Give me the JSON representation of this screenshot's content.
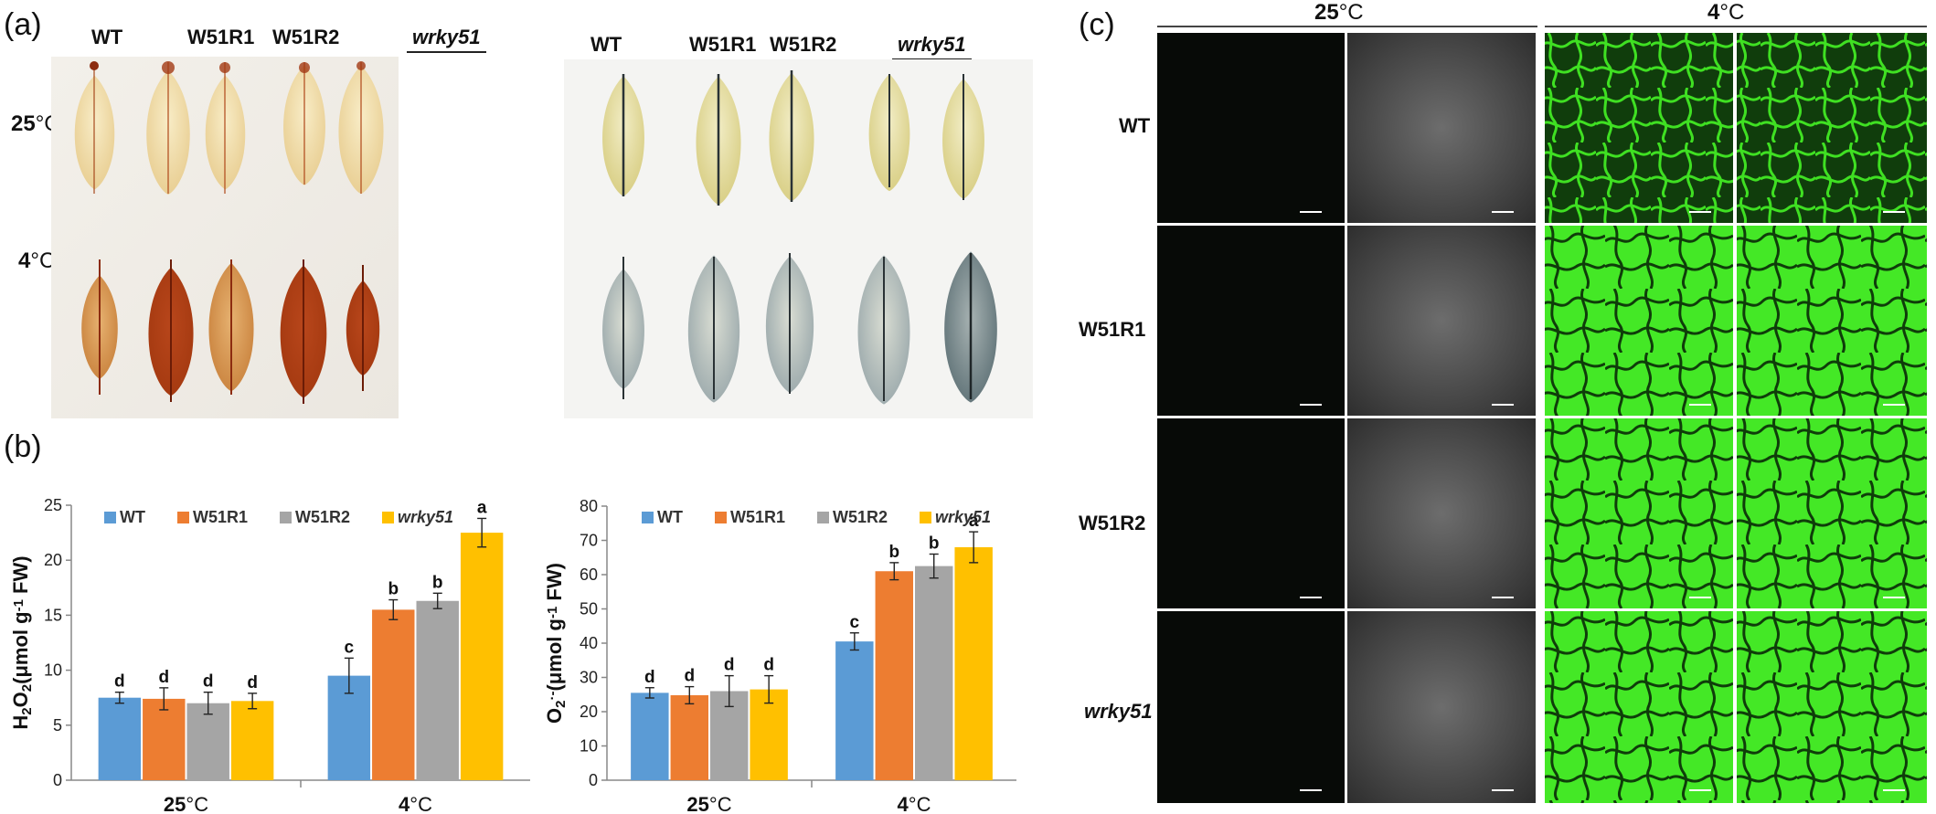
{
  "panel_a": {
    "label": "(a)",
    "dab": {
      "headers": [
        "WT",
        "W51R1",
        "W51R2",
        "wrky51"
      ],
      "rows": [
        {
          "bold": "25",
          "rest": "°C"
        },
        {
          "bold": "4",
          "rest": "°C"
        }
      ]
    },
    "nbt": {
      "headers": [
        "WT",
        "W51R1",
        "W51R2",
        "wrky51"
      ]
    }
  },
  "panel_b": {
    "label": "(b)",
    "legend": [
      "WT",
      "W51R1",
      "W51R2",
      "wrky51"
    ]
  },
  "panel_c": {
    "label": "(c)",
    "headers": [
      {
        "bold": "25",
        "rest": "°C"
      },
      {
        "bold": "4",
        "rest": "°C"
      }
    ],
    "rows": [
      "WT",
      "W51R1",
      "W51R2",
      "wrky51"
    ]
  },
  "colors": {
    "WT": "#5b9bd5",
    "W51R1": "#ed7d31",
    "W51R2": "#a5a5a5",
    "wrky51": "#ffc000"
  },
  "chart_data": [
    {
      "type": "bar",
      "ylabel": "H2O2(μmol g-1 FW)",
      "ylabel_parts": {
        "a": "H",
        "b": "2",
        "c": "O",
        "d": "2",
        "e": "(μmol g",
        "f": "-1",
        "g": " FW)"
      },
      "categories": [
        {
          "bold": "25",
          "rest": "°C"
        },
        {
          "bold": "4",
          "rest": "°C"
        }
      ],
      "ylim": [
        0,
        25
      ],
      "yticks": [
        0,
        5,
        10,
        15,
        20,
        25
      ],
      "series": [
        {
          "name": "WT",
          "values": [
            7.5,
            9.5
          ],
          "errors": [
            0.5,
            1.6
          ],
          "letters": [
            "d",
            "c"
          ]
        },
        {
          "name": "W51R1",
          "values": [
            7.4,
            15.5
          ],
          "errors": [
            1.0,
            0.9
          ],
          "letters": [
            "d",
            "b"
          ]
        },
        {
          "name": "W51R2",
          "values": [
            7.0,
            16.3
          ],
          "errors": [
            1.0,
            0.7
          ],
          "letters": [
            "d",
            "b"
          ]
        },
        {
          "name": "wrky51",
          "values": [
            7.2,
            22.5
          ],
          "errors": [
            0.7,
            1.3
          ],
          "letters": [
            "d",
            "a"
          ]
        }
      ]
    },
    {
      "type": "bar",
      "ylabel": "O2·-(μmol g-1 FW)",
      "ylabel_parts": {
        "a": "O",
        "b": "2",
        "c": "·-",
        "e": "(μmol g",
        "f": "-1",
        "g": " FW)"
      },
      "categories": [
        {
          "bold": "25",
          "rest": "°C"
        },
        {
          "bold": "4",
          "rest": "°C"
        }
      ],
      "ylim": [
        0,
        80
      ],
      "yticks": [
        0,
        10,
        20,
        30,
        40,
        50,
        60,
        70,
        80
      ],
      "series": [
        {
          "name": "WT",
          "values": [
            25.5,
            40.5
          ],
          "errors": [
            1.5,
            2.5
          ],
          "letters": [
            "d",
            "c"
          ]
        },
        {
          "name": "W51R1",
          "values": [
            24.8,
            61.0
          ],
          "errors": [
            2.5,
            2.5
          ],
          "letters": [
            "d",
            "b"
          ]
        },
        {
          "name": "W51R2",
          "values": [
            26.0,
            62.5
          ],
          "errors": [
            4.5,
            3.5
          ],
          "letters": [
            "d",
            "b"
          ]
        },
        {
          "name": "wrky51",
          "values": [
            26.5,
            68.0
          ],
          "errors": [
            4.0,
            4.5
          ],
          "letters": [
            "d",
            "a"
          ]
        }
      ]
    }
  ]
}
